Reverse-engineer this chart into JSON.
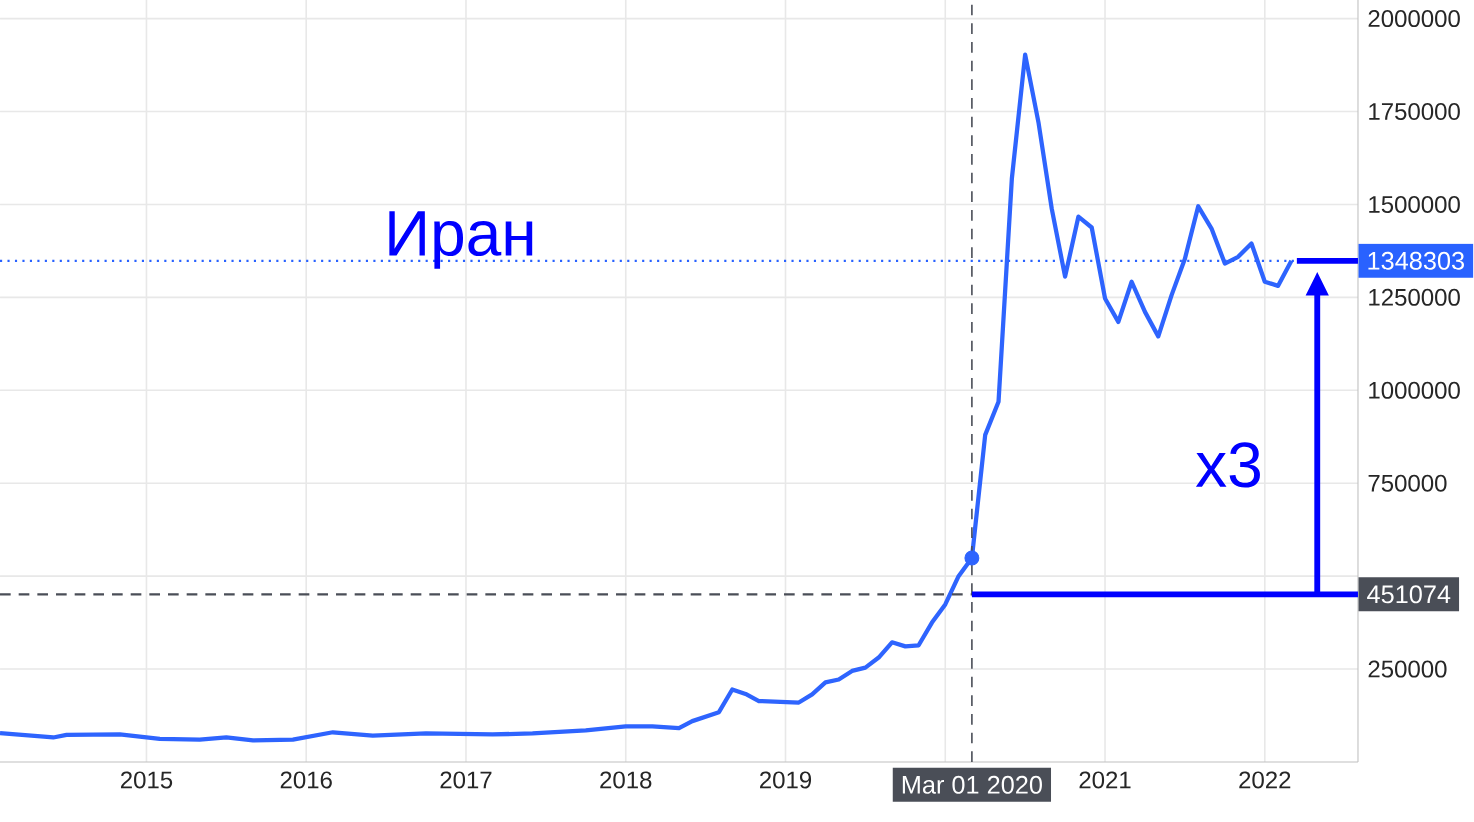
{
  "chart_data": {
    "type": "line",
    "title": "Иран",
    "annotations": [
      "x3"
    ],
    "series": [
      {
        "color": "#2e64fe",
        "x": [
          "2014-02",
          "2014-06",
          "2014-07",
          "2014-11",
          "2015-02",
          "2015-05",
          "2015-07",
          "2015-09",
          "2015-12",
          "2016-03",
          "2016-06",
          "2016-10",
          "2017-03",
          "2017-06",
          "2017-10",
          "2018-01",
          "2018-03",
          "2018-05",
          "2018-06",
          "2018-08",
          "2018-09",
          "2018-10",
          "2018-11",
          "2019-02",
          "2019-03",
          "2019-04",
          "2019-05",
          "2019-06",
          "2019-07",
          "2019-08",
          "2019-09",
          "2019-10",
          "2019-11",
          "2019-12",
          "2020-01",
          "2020-02",
          "2020-03",
          "2020-04",
          "2020-05",
          "2020-06",
          "2020-07",
          "2020-08",
          "2020-09",
          "2020-10",
          "2020-11",
          "2020-12",
          "2021-01",
          "2021-02",
          "2021-03",
          "2021-04",
          "2021-05",
          "2021-06",
          "2021-07",
          "2021-08",
          "2021-09",
          "2021-10",
          "2021-11",
          "2021-12",
          "2022-01",
          "2022-02",
          "2022-03"
        ],
        "values": [
          78000,
          66000,
          73000,
          74000,
          62000,
          60000,
          66000,
          58000,
          60000,
          80000,
          71000,
          77000,
          74000,
          77000,
          85000,
          96000,
          96000,
          91000,
          110000,
          134000,
          195000,
          183000,
          164000,
          160000,
          182000,
          214000,
          222000,
          245000,
          254000,
          281000,
          322000,
          311000,
          314000,
          375000,
          424000,
          500000,
          549000,
          880000,
          969000,
          1569000,
          1903000,
          1721000,
          1488000,
          1306000,
          1467000,
          1438000,
          1247000,
          1184000,
          1292000,
          1211000,
          1145000,
          1256000,
          1354000,
          1495000,
          1435000,
          1341000,
          1359000,
          1395000,
          1292000,
          1281000,
          1348303
        ]
      },
      {
        "type": "scatter",
        "color": "#2e64fe",
        "x": [
          "2020-03"
        ],
        "values": [
          549000
        ]
      }
    ],
    "xlim": [
      "2014-02",
      "2022-08"
    ],
    "xticks": [
      "2015",
      "2016",
      "2017",
      "2018",
      "2019",
      {
        "value": "2020",
        "label": null
      },
      "2021",
      "2022"
    ],
    "ylim": [
      0,
      2050000
    ],
    "yticks": [
      250000,
      {
        "value": 500000,
        "label": null
      },
      750000,
      1000000,
      1250000,
      1500000,
      1750000,
      2000000
    ],
    "ref_lines": [
      {
        "axis": "y",
        "value": 1348303,
        "label": "1348303",
        "color": "#2962ff",
        "line_style": "dotted"
      },
      {
        "axis": "y",
        "value": 451074,
        "label": "451074",
        "color": "#4a4e57",
        "line_style": "dashed"
      },
      {
        "axis": "x",
        "value": "2020-03-01",
        "label": "Mar 01 2020",
        "color": "#4a4e57",
        "line_style": "dashed"
      }
    ],
    "grid": true
  }
}
